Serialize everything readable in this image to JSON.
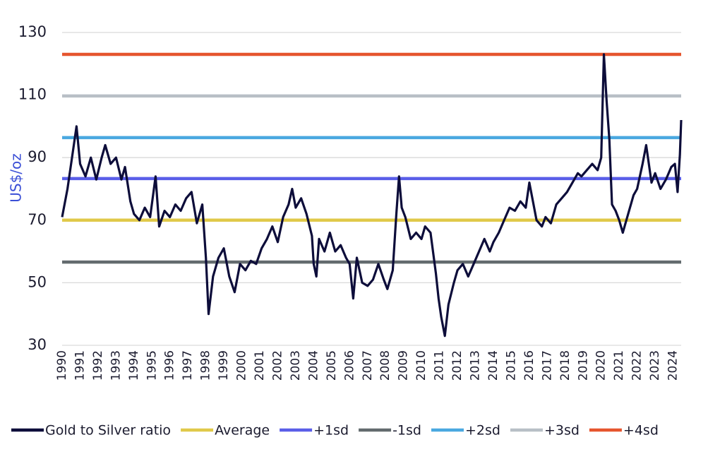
{
  "chart_data": {
    "type": "line",
    "y_label": "US$/oz",
    "xlim": [
      1990,
      2024.45
    ],
    "xticks": [
      1990,
      1991,
      1992,
      1993,
      1994,
      1995,
      1996,
      1997,
      1998,
      1999,
      2000,
      2001,
      2002,
      2003,
      2004,
      2005,
      2006,
      2007,
      2008,
      2009,
      2010,
      2011,
      2012,
      2013,
      2014,
      2015,
      2016,
      2017,
      2018,
      2019,
      2020,
      2021,
      2022,
      2023,
      2024
    ],
    "ylim": [
      30,
      130
    ],
    "yticks": [
      30,
      50,
      70,
      90,
      110,
      130
    ],
    "grid": true,
    "x": [
      1990.0,
      1990.3,
      1990.6,
      1990.8,
      1991.0,
      1991.3,
      1991.6,
      1991.9,
      1992.2,
      1992.4,
      1992.7,
      1993.0,
      1993.3,
      1993.5,
      1993.8,
      1994.0,
      1994.3,
      1994.6,
      1994.9,
      1995.2,
      1995.4,
      1995.7,
      1996.0,
      1996.3,
      1996.6,
      1996.9,
      1997.2,
      1997.5,
      1997.8,
      1998.0,
      1998.15,
      1998.4,
      1998.7,
      1999.0,
      1999.3,
      1999.6,
      1999.9,
      2000.2,
      2000.5,
      2000.8,
      2001.1,
      2001.4,
      2001.7,
      2002.0,
      2002.3,
      2002.6,
      2002.8,
      2003.0,
      2003.3,
      2003.6,
      2003.9,
      2004.0,
      2004.15,
      2004.3,
      2004.6,
      2004.9,
      2005.2,
      2005.5,
      2005.8,
      2006.0,
      2006.2,
      2006.4,
      2006.7,
      2007.0,
      2007.3,
      2007.6,
      2007.9,
      2008.1,
      2008.4,
      2008.6,
      2008.75,
      2008.9,
      2009.1,
      2009.4,
      2009.7,
      2010.0,
      2010.2,
      2010.5,
      2010.8,
      2010.95,
      2011.1,
      2011.3,
      2011.5,
      2011.8,
      2012.0,
      2012.3,
      2012.6,
      2012.9,
      2013.2,
      2013.5,
      2013.8,
      2014.0,
      2014.3,
      2014.6,
      2014.9,
      2015.2,
      2015.5,
      2015.8,
      2016.0,
      2016.2,
      2016.4,
      2016.7,
      2016.9,
      2017.2,
      2017.5,
      2017.8,
      2018.1,
      2018.4,
      2018.7,
      2018.9,
      2019.2,
      2019.5,
      2019.8,
      2020.0,
      2020.15,
      2020.3,
      2020.45,
      2020.6,
      2020.8,
      2021.0,
      2021.2,
      2021.5,
      2021.8,
      2022.0,
      2022.3,
      2022.5,
      2022.8,
      2023.0,
      2023.3,
      2023.6,
      2023.9,
      2024.1,
      2024.25,
      2024.38,
      2024.45
    ],
    "series": [
      {
        "name": "Gold to Silver ratio",
        "color": "#0d0d3a",
        "values": [
          71,
          80,
          92,
          100,
          88,
          84,
          90,
          83,
          90,
          94,
          88,
          90,
          83,
          87,
          76,
          72,
          70,
          74,
          71,
          84,
          68,
          73,
          71,
          75,
          73,
          77,
          79,
          69,
          75,
          58,
          40,
          52,
          58,
          61,
          52,
          47,
          56,
          54,
          57,
          56,
          61,
          64,
          68,
          63,
          71,
          75,
          80,
          74,
          77,
          72,
          65,
          56,
          52,
          64,
          60,
          66,
          60,
          62,
          58,
          56,
          45,
          58,
          50,
          49,
          51,
          56,
          51,
          48,
          54,
          72,
          84,
          74,
          71,
          64,
          66,
          64,
          68,
          66,
          53,
          45,
          39,
          33,
          43,
          50,
          54,
          56,
          52,
          56,
          60,
          64,
          60,
          63,
          66,
          70,
          74,
          73,
          76,
          74,
          82,
          76,
          70,
          68,
          71,
          69,
          75,
          77,
          79,
          82,
          85,
          84,
          86,
          88,
          86,
          90,
          123,
          108,
          96,
          75,
          73,
          70,
          66,
          72,
          78,
          80,
          88,
          94,
          82,
          85,
          80,
          83,
          87,
          88,
          79,
          91,
          102
        ]
      }
    ],
    "hlines": [
      {
        "name": "Average",
        "color": "#e0c94a",
        "value": 70
      },
      {
        "name": "+1sd",
        "color": "#5a5ee8",
        "value": 83.3
      },
      {
        "name": "-1sd",
        "color": "#636b6e",
        "value": 56.6
      },
      {
        "name": "+2sd",
        "color": "#4aa8e0",
        "value": 96.4
      },
      {
        "name": "+3sd",
        "color": "#b8bfc6",
        "value": 109.7
      },
      {
        "name": "+4sd",
        "color": "#e6552e",
        "value": 123
      }
    ]
  }
}
